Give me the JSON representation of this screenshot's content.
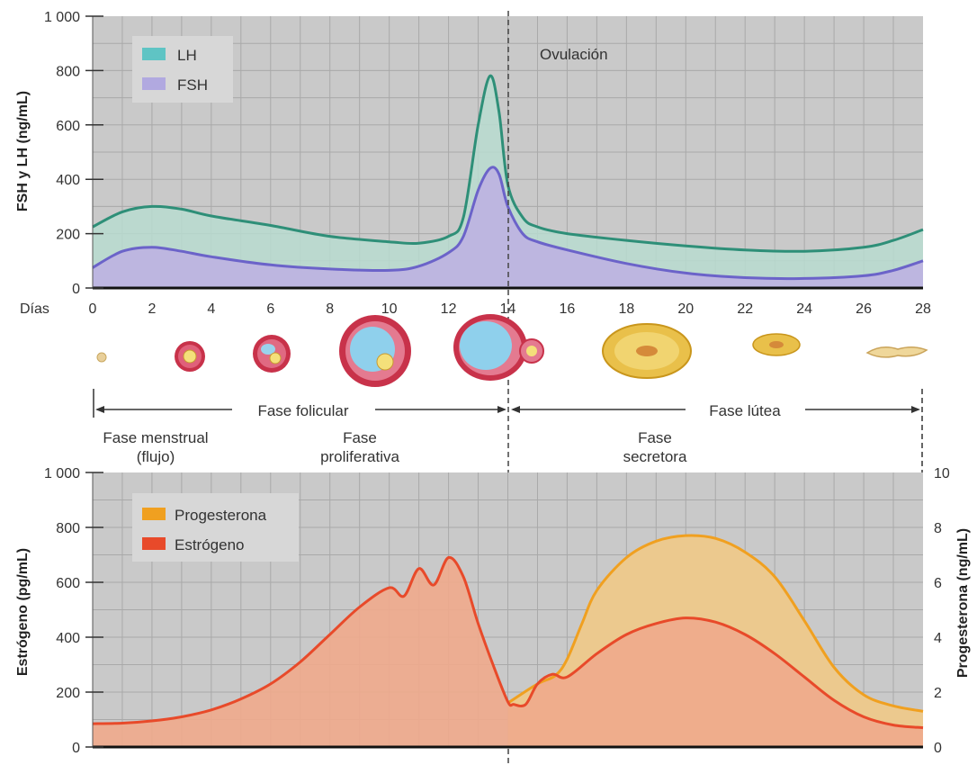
{
  "colors": {
    "panel": "#c9c9c9",
    "grid": "#a9a9a9",
    "lh": "#2e8f78",
    "lh_fill": "#b8dcd0",
    "fsh": "#6b63c9",
    "fsh_fill": "#bdb6e0",
    "progesterone": "#f0a020",
    "progesterone_fill": "#ecc98e",
    "estrogen": "#e84a2a",
    "estrogen_fill": "#efaa8c"
  },
  "top_chart": {
    "ylabel": "FSH y LH (ng/mL)",
    "ovulation_label": "Ovulación",
    "days_label": "Días",
    "legend": [
      {
        "label": "LH",
        "color_key": "lh"
      },
      {
        "label": "FSH",
        "color_key": "fsh"
      }
    ],
    "y_ticks": [
      "0",
      "200",
      "400",
      "600",
      "800",
      "1 000"
    ],
    "x_ticks": [
      "0",
      "2",
      "4",
      "6",
      "8",
      "10",
      "12",
      "14",
      "16",
      "18",
      "20",
      "22",
      "24",
      "26",
      "28"
    ]
  },
  "follicles": [
    {
      "name": "primordial-follicle-icon",
      "day": 0.3
    },
    {
      "name": "primary-follicle-icon",
      "day": 3.3
    },
    {
      "name": "secondary-follicle-icon",
      "day": 6.1
    },
    {
      "name": "antral-follicle-icon",
      "day": 10
    },
    {
      "name": "ovulating-follicle-icon",
      "day": 13.6
    },
    {
      "name": "corpus-luteum-icon",
      "day": 19
    },
    {
      "name": "regressing-corpus-luteum-icon",
      "day": 24
    },
    {
      "name": "corpus-albicans-icon",
      "day": 27.5
    }
  ],
  "phases": {
    "follicular": "Fase folicular",
    "luteal": "Fase lútea",
    "menstrual_line1": "Fase menstrual",
    "menstrual_line2": "(flujo)",
    "proliferative_line1": "Fase",
    "proliferative_line2": "proliferativa",
    "secretory_line1": "Fase",
    "secretory_line2": "secretora"
  },
  "bottom_chart": {
    "ylabel_left": "Estrógeno (pg/mL)",
    "ylabel_right": "Progesterona (ng/mL)",
    "legend": [
      {
        "label": "Progesterona",
        "color_key": "progesterone"
      },
      {
        "label": "Estrógeno",
        "color_key": "estrogen"
      }
    ],
    "y_ticks_left": [
      "0",
      "200",
      "400",
      "600",
      "800",
      "1 000"
    ],
    "y_ticks_right": [
      "0",
      "2",
      "4",
      "6",
      "8",
      "10"
    ]
  },
  "chart_data": [
    {
      "type": "area",
      "xlabel": "Días",
      "ylabel": "FSH y LH (ng/mL)",
      "xlim": [
        0,
        28
      ],
      "ylim": [
        0,
        1000
      ],
      "grid": true,
      "legend_position": "top-left",
      "annotations": [
        {
          "x": 14,
          "label": "Ovulación"
        }
      ],
      "series": [
        {
          "name": "LH",
          "x": [
            0,
            1,
            2,
            3,
            4,
            6,
            8,
            10,
            11,
            12,
            12.5,
            13,
            13.4,
            13.7,
            14,
            14.5,
            15,
            16,
            18,
            20,
            22,
            24,
            26,
            27,
            28
          ],
          "y": [
            225,
            280,
            300,
            290,
            265,
            230,
            190,
            170,
            165,
            190,
            260,
            600,
            780,
            650,
            380,
            260,
            225,
            200,
            175,
            155,
            140,
            135,
            150,
            175,
            215
          ]
        },
        {
          "name": "FSH",
          "x": [
            0,
            1,
            2,
            3,
            4,
            6,
            8,
            10,
            11,
            12,
            12.5,
            13,
            13.4,
            13.7,
            14,
            14.5,
            15,
            16,
            18,
            20,
            22,
            24,
            26,
            27,
            28
          ],
          "y": [
            75,
            135,
            150,
            135,
            115,
            85,
            70,
            65,
            80,
            130,
            190,
            360,
            440,
            420,
            300,
            200,
            170,
            140,
            90,
            55,
            38,
            35,
            45,
            65,
            100
          ]
        }
      ]
    },
    {
      "type": "area",
      "xlabel": "Días",
      "ylabel": "Estrógeno (pg/mL)",
      "y2label": "Progesterona (ng/mL)",
      "xlim": [
        0,
        28
      ],
      "ylim": [
        0,
        1000
      ],
      "y2lim": [
        0,
        10
      ],
      "grid": true,
      "legend_position": "top-left",
      "series": [
        {
          "name": "Estrógeno",
          "axis": "left",
          "x": [
            0,
            1,
            2,
            3,
            4,
            5,
            6,
            7,
            8,
            9,
            10,
            10.5,
            11,
            11.5,
            12,
            12.5,
            13,
            13.5,
            14,
            14.2,
            14.6,
            15,
            15.5,
            16,
            17,
            18,
            19,
            20,
            21,
            22,
            23,
            24,
            25,
            26,
            27,
            28
          ],
          "y": [
            85,
            87,
            95,
            110,
            135,
            175,
            230,
            310,
            410,
            510,
            580,
            550,
            650,
            590,
            690,
            620,
            450,
            300,
            165,
            155,
            155,
            230,
            265,
            255,
            340,
            410,
            450,
            470,
            455,
            410,
            340,
            255,
            170,
            110,
            80,
            70
          ]
        },
        {
          "name": "Progesterona",
          "axis": "right",
          "x": [
            14,
            15,
            15.6,
            16,
            16.5,
            17,
            18,
            19,
            20,
            21,
            22,
            23,
            24,
            25,
            26,
            27,
            28
          ],
          "y": [
            1.6,
            2.3,
            2.6,
            3.2,
            4.5,
            5.7,
            6.9,
            7.5,
            7.7,
            7.6,
            7.1,
            6.2,
            4.6,
            2.9,
            1.9,
            1.5,
            1.3
          ]
        }
      ]
    }
  ]
}
